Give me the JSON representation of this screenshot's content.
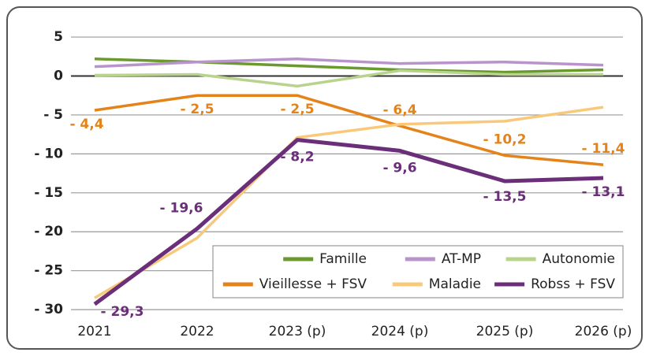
{
  "chart_data": {
    "type": "line",
    "categories": [
      "2021",
      "2022",
      "2023 (p)",
      "2024 (p)",
      "2025 (p)",
      "2026 (p)"
    ],
    "series": [
      {
        "name": "Famille",
        "color": "#6a9a2e",
        "values": [
          2.2,
          1.8,
          1.3,
          0.8,
          0.5,
          0.8
        ]
      },
      {
        "name": "AT-MP",
        "color": "#b893cc",
        "values": [
          1.2,
          1.8,
          2.2,
          1.6,
          1.8,
          1.4
        ]
      },
      {
        "name": "Autonomie",
        "color": "#b8d48c",
        "values": [
          0.1,
          0.2,
          -1.3,
          0.7,
          0.2,
          0.2
        ]
      },
      {
        "name": "Vieillesse + FSV",
        "color": "#e3831a",
        "values": [
          -4.4,
          -2.5,
          -2.5,
          -6.4,
          -10.2,
          -11.4
        ],
        "value_labels": [
          "- 4,4",
          "- 2,5",
          "- 2,5",
          "- 6,4",
          "- 10,2",
          "- 11,4"
        ]
      },
      {
        "name": "Maladie",
        "color": "#f8c97a",
        "values": [
          -28.5,
          -20.8,
          -7.9,
          -6.2,
          -5.8,
          -4.0
        ]
      },
      {
        "name": "Robss + FSV",
        "color": "#6b2f7a",
        "values": [
          -29.3,
          -19.6,
          -8.2,
          -9.6,
          -13.5,
          -13.1
        ],
        "value_labels": [
          "- 29,3",
          "- 19,6",
          "- 8,2",
          "- 9,6",
          "- 13,5",
          "- 13,1"
        ]
      }
    ],
    "ylim": [
      -31,
      7
    ],
    "yticks": [
      5,
      0,
      {
        "value": -5,
        "label": "- 5"
      },
      {
        "value": -10,
        "label": "- 10"
      },
      {
        "value": -15,
        "label": "- 15"
      },
      {
        "value": -20,
        "label": "- 20"
      },
      {
        "value": -25,
        "label": "- 25"
      },
      {
        "value": -30,
        "label": "- 30"
      }
    ],
    "grid": true,
    "legend": "lower right"
  }
}
